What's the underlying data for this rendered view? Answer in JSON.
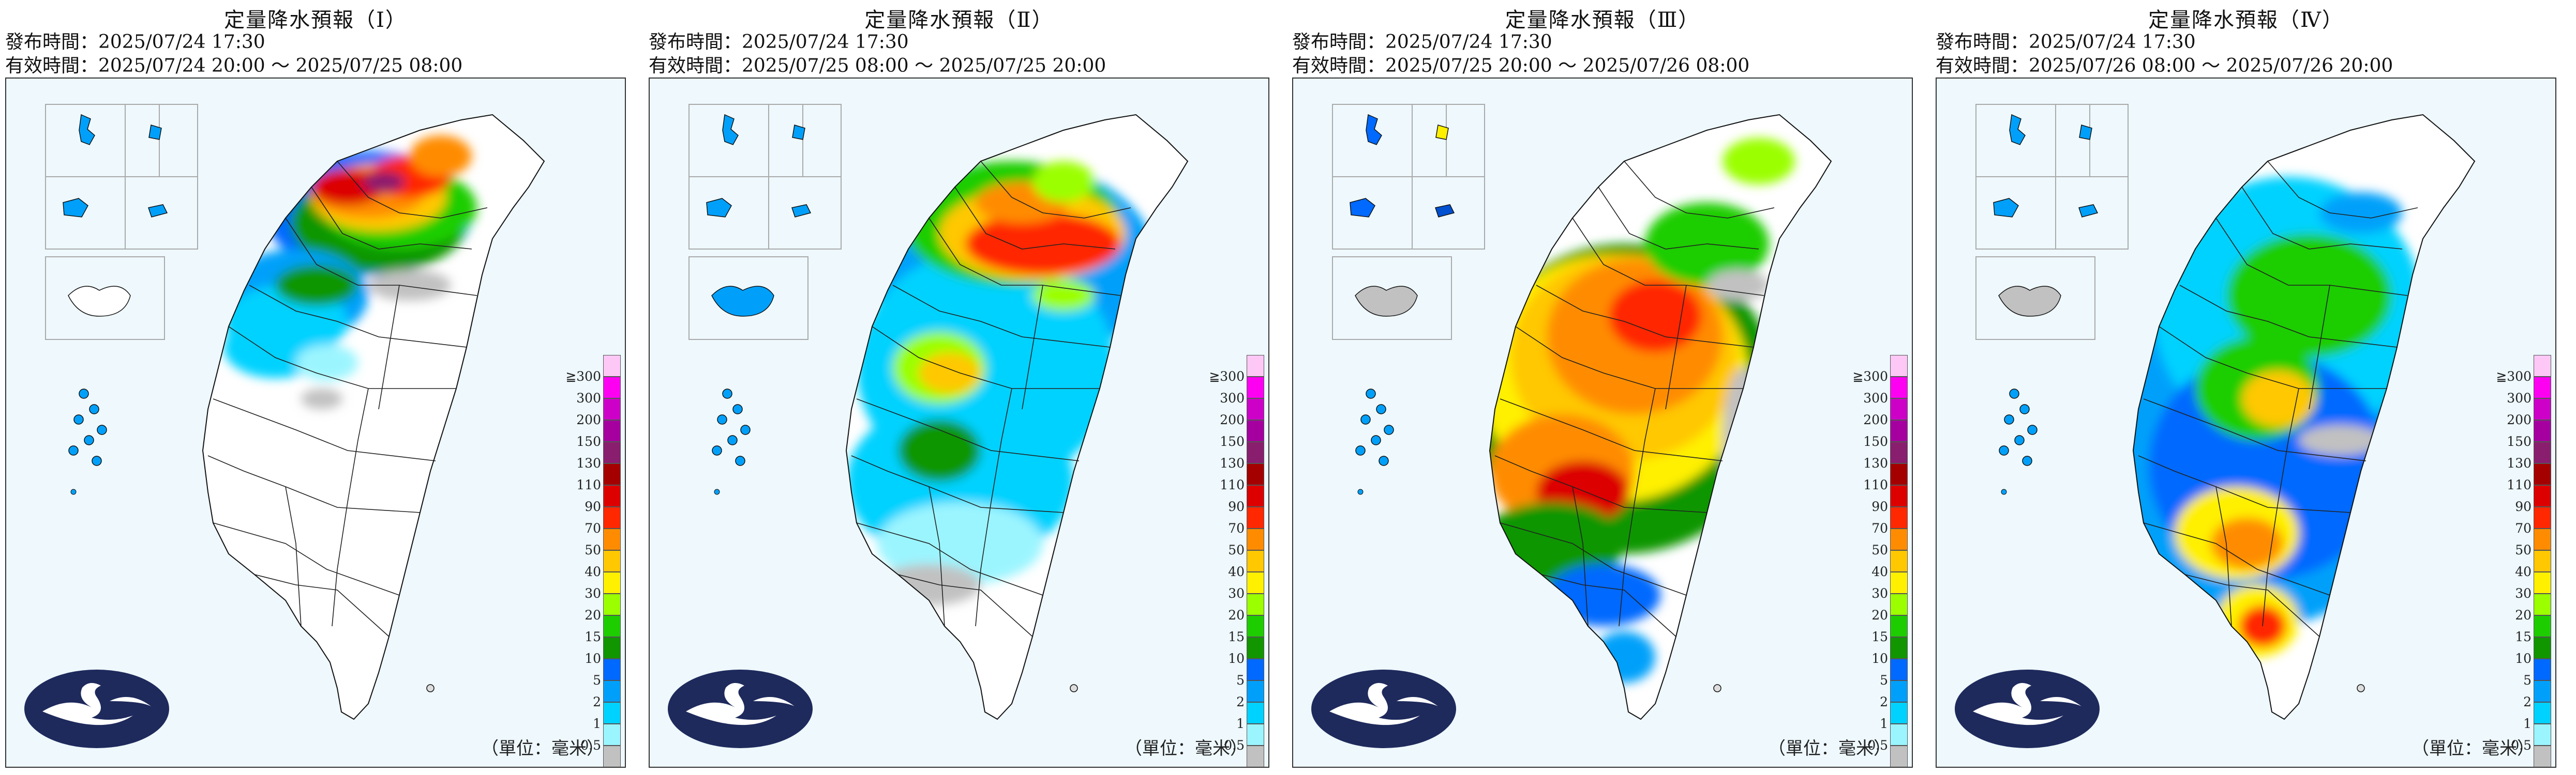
{
  "panels": [
    {
      "title": "定量降水預報（Ⅰ）",
      "issue_text": "發布時間：2025/07/24 17:30",
      "valid_text": "有效時間：2025/07/24 20:00 ～ 2025/07/25 08:00",
      "rain_pattern": "north-heavy"
    },
    {
      "title": "定量降水預報（Ⅱ）",
      "issue_text": "發布時間：2025/07/24 17:30",
      "valid_text": "有效時間：2025/07/25 08:00 ～ 2025/07/25 20:00",
      "rain_pattern": "north-mountain-heavy"
    },
    {
      "title": "定量降水預報（Ⅲ）",
      "issue_text": "發布時間：2025/07/24 17:30",
      "valid_text": "有效時間：2025/07/25 20:00 ～ 2025/07/26 08:00",
      "rain_pattern": "west-central-heavy"
    },
    {
      "title": "定量降水預報（Ⅳ）",
      "issue_text": "發布時間：2025/07/24 17:30",
      "valid_text": "有效時間：2025/07/26 08:00 ～ 2025/07/26 20:00",
      "rain_pattern": "island-wide-moderate"
    }
  ],
  "legend": {
    "unit_text": "（單位：毫米）",
    "levels": [
      {
        "label": "≧300",
        "color": "#fdc8f5"
      },
      {
        "label": "300",
        "color": "#fd00f2"
      },
      {
        "label": "200",
        "color": "#cd00c8"
      },
      {
        "label": "150",
        "color": "#a5009f"
      },
      {
        "label": "130",
        "color": "#8a1e6e"
      },
      {
        "label": "110",
        "color": "#a50000"
      },
      {
        "label": "90",
        "color": "#dc0000"
      },
      {
        "label": "70",
        "color": "#ff2800"
      },
      {
        "label": "50",
        "color": "#ff8c00"
      },
      {
        "label": "40",
        "color": "#ffc800"
      },
      {
        "label": "30",
        "color": "#fff000"
      },
      {
        "label": "20",
        "color": "#9bff00"
      },
      {
        "label": "15",
        "color": "#1ecd00"
      },
      {
        "label": "10",
        "color": "#119600"
      },
      {
        "label": "5",
        "color": "#0069ff"
      },
      {
        "label": "2",
        "color": "#00a0fa"
      },
      {
        "label": "1",
        "color": "#00d2ff"
      },
      {
        "label": "0.5",
        "color": "#9bf5ff"
      },
      {
        "label": "",
        "color": "#c1c1c1"
      }
    ]
  },
  "logo": {
    "name": "cwa-logo",
    "fill": "#1e2a5c"
  }
}
